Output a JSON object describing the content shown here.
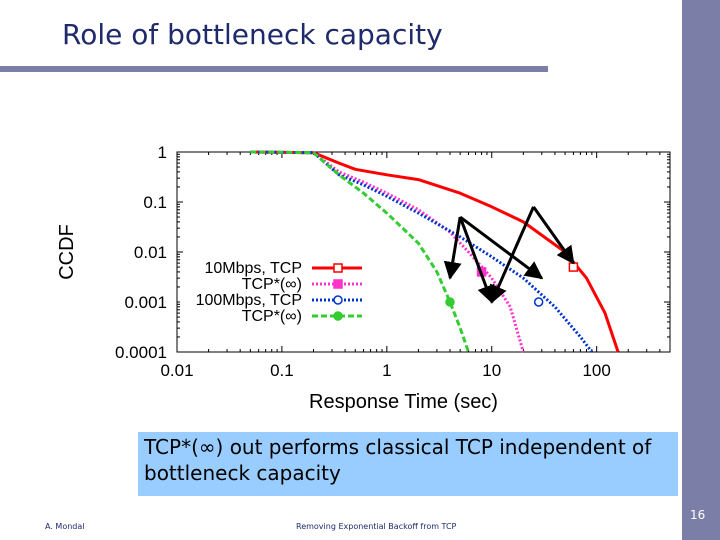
{
  "slide": {
    "title": "Role of bottleneck capacity",
    "callout": "TCP*(∞) out performs classical TCP independent of bottleneck capacity",
    "footer_author": "A. Mondal",
    "footer_title": "Removing Exponential Backoff from TCP",
    "page_number": "16",
    "accent_color": "#7b7fa8",
    "title_color": "#1f2a6b",
    "callout_color": "#99ccff"
  },
  "chart_data": {
    "type": "line",
    "xlabel": "Response Time (sec)",
    "ylabel": "CCDF",
    "x_scale": "log",
    "y_scale": "log",
    "xlim": [
      0.01,
      500
    ],
    "ylim": [
      0.0001,
      1
    ],
    "x_ticks": [
      0.01,
      0.1,
      1,
      10,
      100
    ],
    "x_tick_labels": [
      "0.01",
      "0.1",
      "1",
      "10",
      "100"
    ],
    "y_ticks": [
      0.0001,
      0.001,
      0.01,
      0.1,
      1
    ],
    "y_tick_labels": [
      "0.0001",
      "0.001",
      "0.01",
      "0.1",
      "1"
    ],
    "grid": false,
    "legend_position": "left-lower",
    "series": [
      {
        "name": "10Mbps, TCP",
        "color": "#ff0000",
        "style": "solid",
        "marker": "square-open",
        "points": [
          [
            0.05,
            1
          ],
          [
            0.2,
            0.97
          ],
          [
            0.35,
            0.6
          ],
          [
            0.5,
            0.45
          ],
          [
            1,
            0.35
          ],
          [
            2,
            0.28
          ],
          [
            5,
            0.15
          ],
          [
            10,
            0.08
          ],
          [
            20,
            0.04
          ],
          [
            50,
            0.01
          ],
          [
            80,
            0.003
          ],
          [
            120,
            0.0006
          ],
          [
            160,
            0.0001
          ]
        ],
        "marker_point": [
          60,
          0.005
        ]
      },
      {
        "name": "TCP*(∞)",
        "color": "#ff33cc",
        "style": "dotted",
        "marker": "square-filled",
        "points": [
          [
            0.05,
            1
          ],
          [
            0.2,
            0.97
          ],
          [
            0.35,
            0.4
          ],
          [
            0.6,
            0.25
          ],
          [
            1,
            0.15
          ],
          [
            2,
            0.07
          ],
          [
            4,
            0.025
          ],
          [
            6,
            0.01
          ],
          [
            10,
            0.003
          ],
          [
            15,
            0.0008
          ],
          [
            20,
            0.0001
          ]
        ],
        "marker_point": [
          8,
          0.004
        ]
      },
      {
        "name": "100Mbps, TCP",
        "color": "#0033cc",
        "style": "dotted",
        "marker": "circle-open",
        "points": [
          [
            0.05,
            1
          ],
          [
            0.2,
            0.97
          ],
          [
            0.35,
            0.35
          ],
          [
            0.6,
            0.22
          ],
          [
            1,
            0.13
          ],
          [
            2,
            0.06
          ],
          [
            5,
            0.02
          ],
          [
            10,
            0.008
          ],
          [
            20,
            0.003
          ],
          [
            40,
            0.0008
          ],
          [
            70,
            0.0002
          ],
          [
            90,
            0.0001
          ]
        ],
        "marker_point": [
          28,
          0.001
        ]
      },
      {
        "name": "TCP*(∞)",
        "color": "#33cc33",
        "style": "dashed",
        "marker": "circle-filled",
        "points": [
          [
            0.05,
            1
          ],
          [
            0.2,
            0.97
          ],
          [
            0.35,
            0.35
          ],
          [
            0.6,
            0.15
          ],
          [
            1,
            0.06
          ],
          [
            2,
            0.015
          ],
          [
            3,
            0.004
          ],
          [
            4,
            0.001
          ],
          [
            5,
            0.0003
          ],
          [
            6,
            0.0001
          ]
        ],
        "marker_point": [
          4,
          0.001
        ]
      }
    ],
    "annotations": [
      {
        "type": "arrow",
        "from": [
          5,
          0.05
        ],
        "to": [
          4,
          0.003
        ]
      },
      {
        "type": "arrow",
        "from": [
          5,
          0.05
        ],
        "to": [
          10,
          0.001
        ]
      },
      {
        "type": "arrow",
        "from": [
          25,
          0.08
        ],
        "to": [
          10,
          0.001
        ]
      },
      {
        "type": "arrow",
        "from": [
          25,
          0.08
        ],
        "to": [
          60,
          0.006
        ]
      },
      {
        "type": "arrow",
        "from": [
          5,
          0.05
        ],
        "to": [
          30,
          0.003
        ]
      }
    ]
  }
}
